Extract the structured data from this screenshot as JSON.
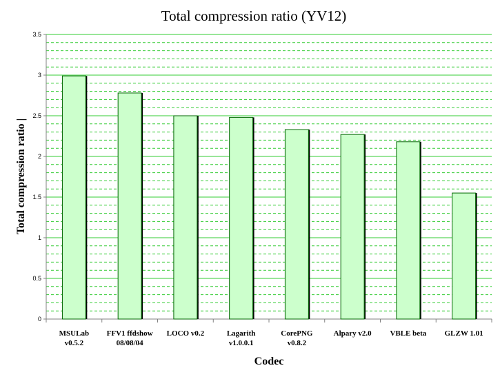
{
  "chart_data": {
    "type": "bar",
    "title": "Total compression ratio (YV12)",
    "xlabel": "Codec",
    "ylabel": "Total compression ratio  |",
    "categories": [
      [
        "MSULab",
        "v0.5.2"
      ],
      [
        "FFV1 ffdshow",
        "08/08/04"
      ],
      [
        "LOCO v0.2"
      ],
      [
        "Lagarith",
        "v1.0.0.1"
      ],
      [
        "CorePNG",
        "v0.8.2"
      ],
      [
        "Alpary v2.0"
      ],
      [
        "VBLE beta"
      ],
      [
        "GLZW 1.01"
      ]
    ],
    "values": [
      2.99,
      2.78,
      2.5,
      2.48,
      2.33,
      2.27,
      2.18,
      1.55
    ],
    "ylim": [
      0,
      3.5
    ],
    "yticks": [
      "0",
      "0.5",
      "1",
      "1.5",
      "2",
      "2.5",
      "3",
      "3.5"
    ],
    "major_step": 0.5,
    "minor_step": 0.1,
    "grid": true,
    "legend": "none",
    "colors": {
      "bar_fill": "#ccffcc",
      "bar_stroke": "#006600",
      "major_grid": "#33cc33",
      "minor_grid": "#33cc33",
      "axis": "#808080",
      "text": "#000000"
    }
  }
}
